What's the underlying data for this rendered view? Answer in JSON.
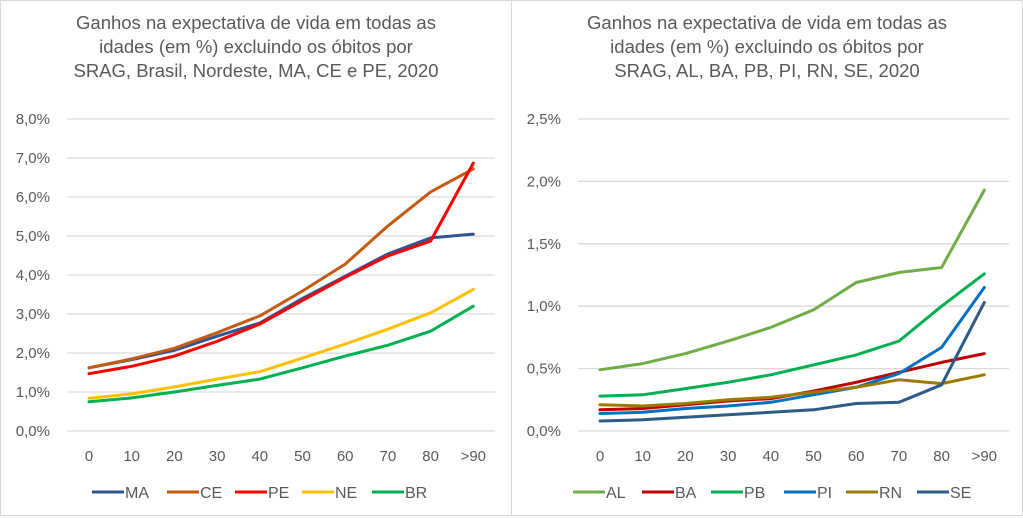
{
  "chart_data": [
    {
      "type": "line",
      "title": "Ganhos na expectativa de vida em todas as idades (em %) excluindo os óbitos por SRAG, Brasil, Nordeste, MA, CE e PE, 2020",
      "title_lines": [
        "Ganhos na expectativa de vida em todas as",
        "idades (em %) excluindo os óbitos por",
        "SRAG, Brasil, Nordeste, MA, CE e PE, 2020"
      ],
      "xlabel": "",
      "ylabel": "",
      "categories": [
        "0",
        "10",
        "20",
        "30",
        "40",
        "50",
        "60",
        "70",
        "80",
        ">90"
      ],
      "ylim": [
        0,
        8
      ],
      "yticks": [
        0,
        1,
        2,
        3,
        4,
        5,
        6,
        7,
        8
      ],
      "ytick_labels": [
        "0,0%",
        "1,0%",
        "2,0%",
        "3,0%",
        "4,0%",
        "5,0%",
        "6,0%",
        "7,0%",
        "8,0%"
      ],
      "grid": true,
      "legend_position": "bottom",
      "series": [
        {
          "name": "MA",
          "color": "#2F5597",
          "values": [
            1.62,
            1.83,
            2.07,
            2.43,
            2.77,
            3.4,
            3.97,
            4.54,
            4.95,
            5.05
          ]
        },
        {
          "name": "CE",
          "color": "#C55A11",
          "values": [
            1.62,
            1.85,
            2.12,
            2.52,
            2.95,
            3.59,
            4.28,
            5.26,
            6.13,
            6.72
          ]
        },
        {
          "name": "PE",
          "color": "#FF0000",
          "values": [
            1.47,
            1.66,
            1.92,
            2.3,
            2.74,
            3.35,
            3.94,
            4.49,
            4.87,
            6.87
          ]
        },
        {
          "name": "NE",
          "color": "#FFC000",
          "values": [
            0.84,
            0.95,
            1.13,
            1.33,
            1.52,
            1.87,
            2.23,
            2.61,
            3.03,
            3.63
          ]
        },
        {
          "name": "BR",
          "color": "#00B050",
          "values": [
            0.75,
            0.85,
            1.0,
            1.17,
            1.33,
            1.62,
            1.92,
            2.2,
            2.56,
            3.2
          ]
        }
      ]
    },
    {
      "type": "line",
      "title": "Ganhos na expectativa de vida em todas as idades (em %) excluindo os óbitos por SRAG, AL, BA, PB, PI, RN, SE, 2020",
      "title_lines": [
        "Ganhos na expectativa de vida em todas as",
        "idades (em %) excluindo os óbitos por",
        "SRAG, AL, BA, PB, PI, RN, SE, 2020"
      ],
      "xlabel": "",
      "ylabel": "",
      "categories": [
        "0",
        "10",
        "20",
        "30",
        "40",
        "50",
        "60",
        "70",
        "80",
        ">90"
      ],
      "ylim": [
        0,
        2.5
      ],
      "yticks": [
        0,
        0.5,
        1,
        1.5,
        2,
        2.5
      ],
      "ytick_labels": [
        "0,0%",
        "0,5%",
        "1,0%",
        "1,5%",
        "2,0%",
        "2,5%"
      ],
      "grid": true,
      "legend_position": "bottom",
      "series": [
        {
          "name": "AL",
          "color": "#70AD47",
          "values": [
            0.49,
            0.54,
            0.62,
            0.72,
            0.83,
            0.97,
            1.19,
            1.27,
            1.31,
            1.93
          ]
        },
        {
          "name": "BA",
          "color": "#C00000",
          "values": [
            0.17,
            0.18,
            0.21,
            0.24,
            0.26,
            0.32,
            0.39,
            0.47,
            0.55,
            0.62
          ]
        },
        {
          "name": "PB",
          "color": "#00B050",
          "values": [
            0.28,
            0.29,
            0.34,
            0.39,
            0.45,
            0.53,
            0.61,
            0.72,
            1.0,
            1.26
          ]
        },
        {
          "name": "PI",
          "color": "#0070C0",
          "values": [
            0.14,
            0.15,
            0.18,
            0.2,
            0.23,
            0.29,
            0.35,
            0.46,
            0.67,
            1.15
          ]
        },
        {
          "name": "RN",
          "color": "#9C7A00",
          "values": [
            0.21,
            0.2,
            0.22,
            0.25,
            0.27,
            0.31,
            0.35,
            0.41,
            0.38,
            0.45
          ]
        },
        {
          "name": "SE",
          "color": "#2E5C8A",
          "values": [
            0.08,
            0.09,
            0.11,
            0.13,
            0.15,
            0.17,
            0.22,
            0.23,
            0.37,
            1.03
          ]
        }
      ]
    }
  ]
}
